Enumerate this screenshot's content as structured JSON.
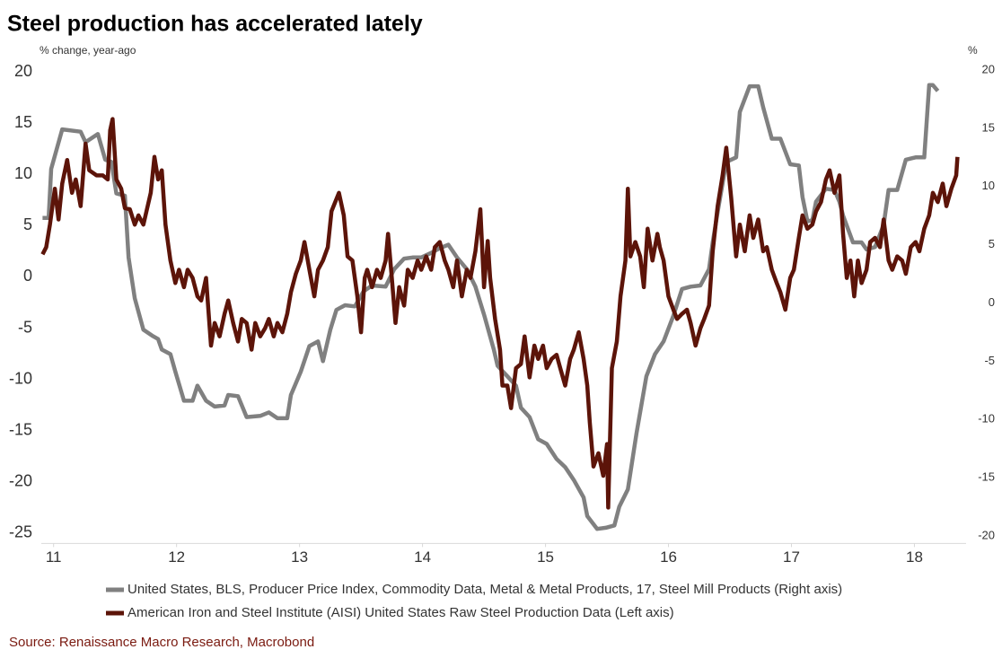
{
  "chart_data": {
    "type": "line",
    "title": "Steel production has accelerated lately",
    "y_label": "% change, year-ago",
    "y2_label": "%",
    "source": "Source: Renaissance Macro Research, Macrobond",
    "xlim": [
      10.9,
      18.42
    ],
    "xticks": [
      11,
      12,
      13,
      14,
      15,
      16,
      17,
      18
    ],
    "ylim": [
      -26,
      21
    ],
    "yticks": [
      -25,
      -20,
      -15,
      -10,
      -5,
      0,
      5,
      10,
      15,
      20
    ],
    "y2lim": [
      -20.65,
      20.72
    ],
    "y2ticks": [
      -20,
      -15,
      -10,
      -5,
      0,
      5,
      10,
      15,
      20
    ],
    "series": [
      {
        "name": "United States, BLS, Producer Price Index, Commodity Data, Metal & Metal Products, 17, Steel Mill Products (Right axis)",
        "color": "#808080",
        "axis": "y2",
        "x": [
          10.91,
          10.96,
          10.98,
          11.07,
          11.22,
          11.26,
          11.36,
          11.42,
          11.47,
          11.51,
          11.58,
          11.61,
          11.66,
          11.73,
          11.8,
          11.85,
          11.88,
          11.95,
          11.99,
          12.06,
          12.13,
          12.17,
          12.24,
          12.31,
          12.39,
          12.42,
          12.5,
          12.57,
          12.68,
          12.75,
          12.82,
          12.9,
          12.93,
          13.01,
          13.08,
          13.15,
          13.19,
          13.25,
          13.3,
          13.37,
          13.45,
          13.52,
          13.59,
          13.7,
          13.77,
          13.85,
          13.92,
          13.99,
          14.07,
          14.14,
          14.21,
          14.28,
          14.36,
          14.43,
          14.5,
          14.58,
          14.61,
          14.69,
          14.76,
          14.8,
          14.87,
          14.94,
          15.01,
          15.09,
          15.16,
          15.23,
          15.31,
          15.34,
          15.42,
          15.49,
          15.56,
          15.6,
          15.67,
          15.74,
          15.82,
          15.89,
          15.96,
          16.04,
          16.11,
          16.18,
          16.26,
          16.33,
          16.36,
          16.4,
          16.47,
          16.55,
          16.58,
          16.66,
          16.73,
          16.77,
          16.84,
          16.91,
          16.99,
          17.06,
          17.09,
          17.13,
          17.17,
          17.2,
          17.28,
          17.35,
          17.39,
          17.42,
          17.5,
          17.57,
          17.61,
          17.68,
          17.75,
          17.79,
          17.86,
          17.93,
          18.01,
          18.08,
          18.12,
          18.15,
          18.19
        ],
        "values": [
          7.3,
          7.3,
          11.5,
          14.9,
          14.7,
          13.8,
          14.5,
          12.3,
          12.1,
          9.4,
          9.2,
          3.9,
          0.4,
          -2.3,
          -2.8,
          -3.1,
          -4.0,
          -4.4,
          -5.9,
          -8.4,
          -8.4,
          -7.1,
          -8.4,
          -8.9,
          -8.8,
          -7.9,
          -8.0,
          -9.8,
          -9.7,
          -9.4,
          -9.9,
          -9.9,
          -7.9,
          -5.9,
          -3.7,
          -3.3,
          -5.0,
          -2.3,
          -0.6,
          -0.2,
          -0.3,
          1.0,
          1.5,
          1.4,
          2.9,
          3.8,
          3.9,
          3.9,
          4.3,
          4.7,
          5.0,
          3.9,
          2.9,
          1.4,
          -1.0,
          -4.0,
          -5.4,
          -6.3,
          -7.1,
          -9.0,
          -9.8,
          -11.7,
          -12.1,
          -13.4,
          -14.1,
          -15.2,
          -16.7,
          -18.3,
          -19.4,
          -19.3,
          -19.1,
          -17.5,
          -16.0,
          -11.2,
          -6.3,
          -4.4,
          -3.3,
          -1.1,
          1.2,
          1.4,
          1.5,
          2.9,
          5.2,
          7.8,
          12.1,
          12.5,
          16.4,
          18.6,
          18.6,
          16.8,
          14.1,
          14.1,
          11.9,
          11.8,
          9.1,
          7.0,
          7.1,
          8.7,
          9.8,
          9.7,
          8.7,
          7.5,
          5.2,
          5.2,
          4.6,
          4.8,
          6.7,
          9.7,
          9.7,
          12.3,
          12.5,
          12.5,
          18.7,
          18.7,
          18.2
        ]
      },
      {
        "name": "American Iron and Steel Institute (AISI) United States Raw Steel Production Data (Left axis)",
        "color": "#5c1409",
        "axis": "y",
        "x": [
          10.91,
          10.94,
          10.97,
          11.01,
          11.04,
          11.07,
          11.11,
          11.15,
          11.18,
          11.22,
          11.26,
          11.29,
          11.35,
          11.4,
          11.44,
          11.46,
          11.48,
          11.51,
          11.55,
          11.58,
          11.62,
          11.66,
          11.69,
          11.73,
          11.79,
          11.82,
          11.85,
          11.88,
          11.91,
          11.95,
          11.99,
          12.02,
          12.06,
          12.09,
          12.13,
          12.17,
          12.2,
          12.24,
          12.28,
          12.31,
          12.35,
          12.39,
          12.42,
          12.46,
          12.5,
          12.53,
          12.57,
          12.61,
          12.64,
          12.68,
          12.72,
          12.75,
          12.79,
          12.82,
          12.86,
          12.9,
          12.93,
          12.97,
          13.01,
          13.04,
          13.08,
          13.12,
          13.15,
          13.19,
          13.23,
          13.26,
          13.32,
          13.36,
          13.39,
          13.43,
          13.47,
          13.5,
          13.53,
          13.55,
          13.59,
          13.63,
          13.66,
          13.7,
          13.72,
          13.75,
          13.78,
          13.81,
          13.85,
          13.88,
          13.92,
          13.96,
          13.99,
          14.03,
          14.07,
          14.1,
          14.14,
          14.18,
          14.21,
          14.25,
          14.28,
          14.32,
          14.36,
          14.39,
          14.43,
          14.47,
          14.5,
          14.53,
          14.55,
          14.59,
          14.63,
          14.65,
          14.69,
          14.72,
          14.76,
          14.8,
          14.83,
          14.87,
          14.91,
          14.94,
          14.98,
          15.01,
          15.05,
          15.09,
          15.12,
          15.16,
          15.2,
          15.23,
          15.27,
          15.31,
          15.34,
          15.36,
          15.39,
          15.43,
          15.47,
          15.5,
          15.51,
          15.54,
          15.58,
          15.61,
          15.65,
          15.67,
          15.69,
          15.73,
          15.77,
          15.8,
          15.83,
          15.87,
          15.91,
          15.93,
          15.96,
          16.0,
          16.04,
          16.07,
          16.11,
          16.15,
          16.18,
          16.22,
          16.26,
          16.29,
          16.33,
          16.36,
          16.4,
          16.44,
          16.47,
          16.51,
          16.55,
          16.58,
          16.62,
          16.66,
          16.69,
          16.73,
          16.77,
          16.8,
          16.84,
          16.88,
          16.91,
          16.95,
          16.99,
          17.02,
          17.06,
          17.09,
          17.13,
          17.17,
          17.2,
          17.24,
          17.28,
          17.31,
          17.35,
          17.39,
          17.42,
          17.45,
          17.48,
          17.51,
          17.54,
          17.57,
          17.61,
          17.64,
          17.68,
          17.72,
          17.75,
          17.79,
          17.82,
          17.86,
          17.9,
          17.93,
          17.97,
          18.01,
          18.04,
          18.08,
          18.12,
          18.15,
          18.19,
          18.23,
          18.26,
          18.3,
          18.34,
          18.35
        ],
        "values": [
          2.2,
          2.9,
          5.1,
          8.6,
          5.6,
          9.1,
          11.4,
          8.2,
          9.5,
          6.9,
          13.0,
          10.4,
          9.9,
          9.9,
          9.5,
          14.3,
          15.4,
          9.5,
          8.6,
          6.7,
          6.6,
          5.1,
          6.0,
          5.1,
          8.2,
          11.7,
          9.5,
          10.4,
          5.1,
          1.6,
          -0.6,
          0.7,
          -1.0,
          0.7,
          -0.1,
          -1.9,
          -2.3,
          -0.1,
          -6.7,
          -4.5,
          -5.8,
          -3.6,
          -2.3,
          -4.5,
          -6.3,
          -4.1,
          -4.5,
          -7.1,
          -4.5,
          -5.8,
          -5.0,
          -4.1,
          -5.8,
          -4.5,
          -5.4,
          -3.6,
          -1.5,
          0.3,
          1.6,
          3.4,
          0.7,
          -1.9,
          0.7,
          1.6,
          2.9,
          6.4,
          8.2,
          6.0,
          2.0,
          1.6,
          -1.9,
          -5.4,
          -0.1,
          0.7,
          -1.0,
          0.7,
          -0.1,
          1.6,
          4.2,
          -0.1,
          -4.5,
          -1.0,
          -2.8,
          0.7,
          -0.1,
          1.6,
          0.7,
          2.0,
          0.7,
          2.9,
          3.4,
          1.6,
          0.7,
          -1.0,
          1.6,
          -1.9,
          0.7,
          -0.1,
          2.5,
          6.6,
          -1.0,
          3.5,
          -0.1,
          -4.1,
          -7.1,
          -10.6,
          -10.6,
          -12.8,
          -8.9,
          -8.5,
          -5.8,
          -9.8,
          -6.7,
          -8.0,
          -6.7,
          -8.9,
          -8.0,
          -7.6,
          -8.9,
          -10.6,
          -8.0,
          -7.1,
          -5.4,
          -8.0,
          -10.6,
          -14.2,
          -18.5,
          -17.2,
          -19.4,
          -16.3,
          -22.5,
          -8.9,
          -6.3,
          -1.9,
          1.6,
          8.6,
          2.0,
          3.4,
          2.0,
          -1.0,
          4.7,
          1.6,
          4.2,
          2.9,
          1.6,
          -1.9,
          -3.2,
          -4.1,
          -3.6,
          -3.2,
          -4.5,
          -6.7,
          -5.0,
          -4.1,
          -2.8,
          2.5,
          6.9,
          9.9,
          12.6,
          7.7,
          2.0,
          5.1,
          2.5,
          6.0,
          3.8,
          5.6,
          2.5,
          2.9,
          0.7,
          -0.6,
          -1.5,
          -3.2,
          -0.1,
          0.7,
          3.8,
          6.0,
          4.7,
          5.1,
          6.4,
          7.3,
          9.5,
          10.4,
          8.2,
          9.9,
          4.2,
          -0.1,
          1.6,
          -1.9,
          1.6,
          -0.6,
          0.7,
          3.4,
          3.8,
          2.9,
          5.6,
          1.6,
          0.7,
          2.0,
          1.6,
          0.3,
          2.9,
          3.4,
          2.5,
          4.7,
          6.0,
          8.2,
          7.3,
          9.1,
          6.9,
          8.6,
          9.9,
          11.7
        ]
      }
    ]
  }
}
